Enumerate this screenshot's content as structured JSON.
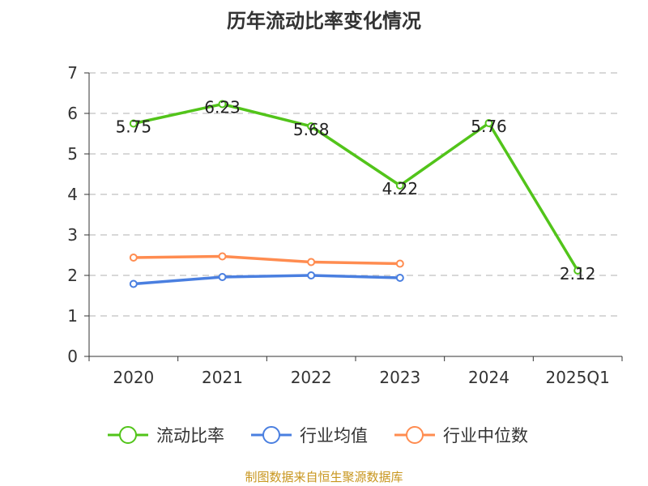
{
  "chart_data": {
    "type": "line",
    "title": "历年流动比率变化情况",
    "categories": [
      "2020",
      "2021",
      "2022",
      "2023",
      "2024",
      "2025Q1"
    ],
    "ylim": [
      0,
      7
    ],
    "yticks": [
      0,
      1,
      2,
      3,
      4,
      5,
      6,
      7
    ],
    "grid": true,
    "legend_position": "bottom",
    "series": [
      {
        "name": "流动比率",
        "color": "#52c41a",
        "values": [
          5.75,
          6.23,
          5.68,
          4.22,
          5.76,
          2.12
        ],
        "labels": [
          "5.75",
          "6.23",
          "5.68",
          "4.22",
          "5.76",
          "2.12"
        ]
      },
      {
        "name": "行业均值",
        "color": "#4a7fe0",
        "values": [
          1.79,
          1.96,
          2.0,
          1.94,
          null,
          null
        ]
      },
      {
        "name": "行业中位数",
        "color": "#ff8c50",
        "values": [
          2.44,
          2.47,
          2.33,
          2.29,
          null,
          null
        ]
      }
    ]
  },
  "source": "制图数据来自恒生聚源数据库"
}
